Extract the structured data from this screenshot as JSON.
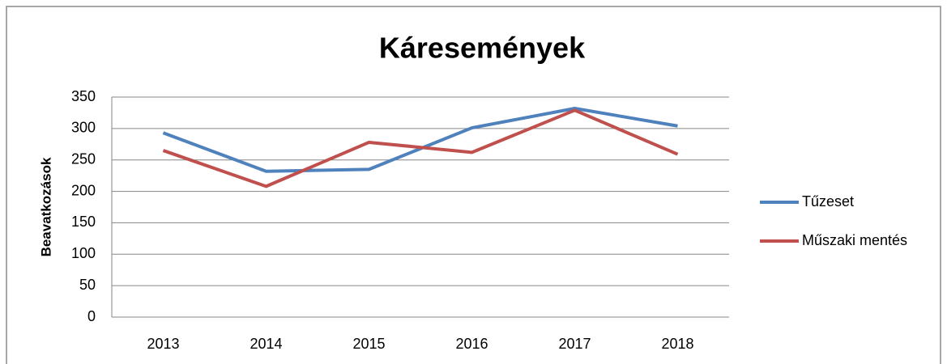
{
  "chart_data": {
    "type": "line",
    "title": "Káresemények",
    "y_label": "Beavatkozások",
    "categories": [
      "2013",
      "2014",
      "2015",
      "2016",
      "2017",
      "2018"
    ],
    "series": [
      {
        "name": "Tűzeset",
        "color": "#4f81bd",
        "values": [
          293,
          232,
          235,
          301,
          332,
          304
        ]
      },
      {
        "name": "Műszaki mentés",
        "color": "#c0504d",
        "values": [
          265,
          208,
          278,
          262,
          329,
          259
        ]
      }
    ],
    "ylim": [
      0,
      350
    ],
    "yticks": [
      0,
      50,
      100,
      150,
      200,
      250,
      300,
      350
    ],
    "grid": true,
    "legend": "right"
  }
}
